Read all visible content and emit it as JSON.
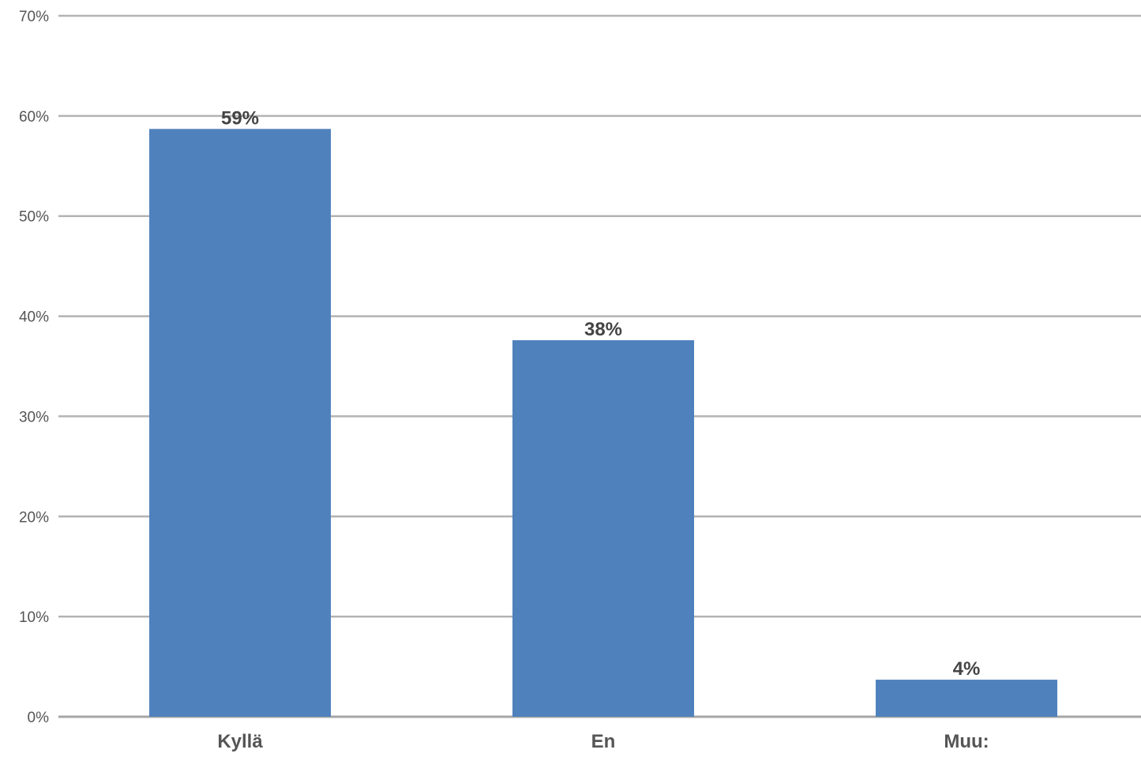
{
  "chart_data": {
    "type": "bar",
    "title": "",
    "xlabel": "",
    "ylabel": "",
    "categories": [
      "Kyllä",
      "En",
      "Muu:"
    ],
    "values": [
      58.7,
      37.6,
      3.7
    ],
    "data_labels": [
      "59%",
      "38%",
      "4%"
    ],
    "y_ticks": [
      "0%",
      "10%",
      "20%",
      "30%",
      "40%",
      "50%",
      "60%",
      "70%"
    ],
    "ylim": [
      0,
      70
    ],
    "y_unit": "%",
    "grid": true,
    "legend": "none",
    "bar_color": "#4f81bd"
  }
}
